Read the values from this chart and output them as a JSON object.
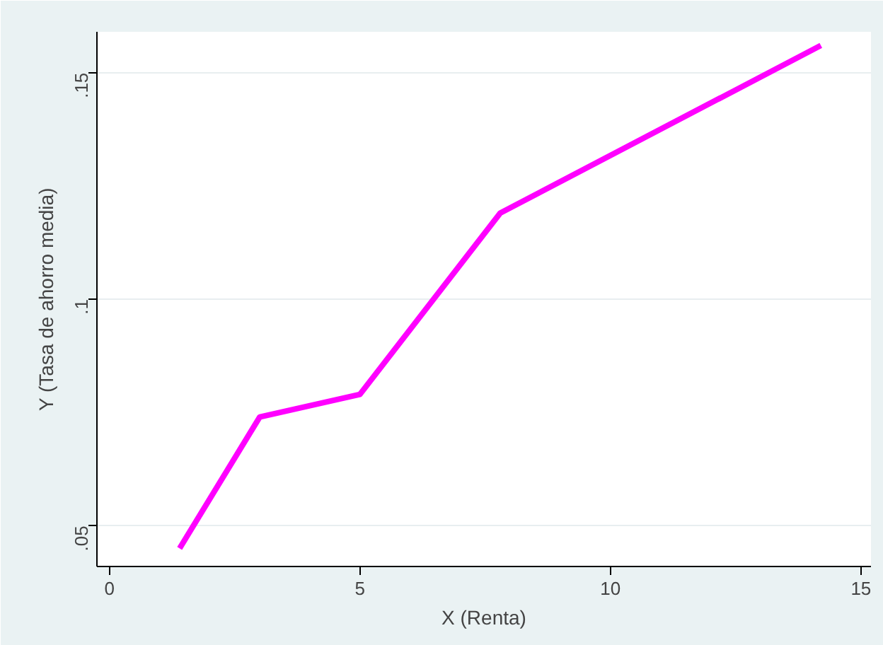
{
  "chart_data": {
    "type": "line",
    "xlabel": "X (Renta)",
    "ylabel": "Y (Tasa de ahorro media)",
    "x": [
      1.4,
      3.0,
      5.0,
      7.8,
      14.2
    ],
    "series": [
      {
        "color": "#ff00ff",
        "values": [
          0.045,
          0.074,
          0.079,
          0.119,
          0.156
        ]
      }
    ],
    "xlim": [
      -0.25,
      15.2
    ],
    "ylim": [
      0.041,
      0.159
    ],
    "xticks": [
      0,
      5,
      10,
      15
    ],
    "yticks": [
      {
        "value": 0.05,
        "label": ".05"
      },
      {
        "value": 0.1,
        "label": ".1"
      },
      {
        "value": 0.15,
        "label": ".15"
      }
    ],
    "grid": "y",
    "marker": "none",
    "line_style": "solid"
  }
}
